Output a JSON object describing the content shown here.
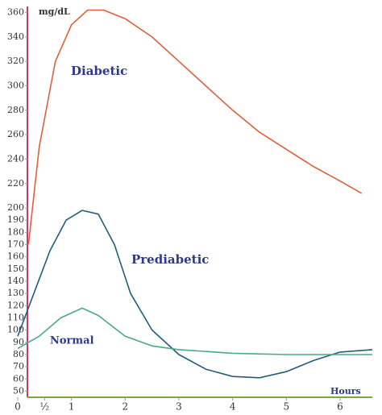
{
  "chart_data": {
    "type": "line",
    "y_unit": "mg/dL",
    "x_label": "Hours",
    "annotations": [
      "Diabetic",
      "Prediabetic",
      "Normal"
    ],
    "xlim": [
      -0.15,
      6.6
    ],
    "ylim": [
      45,
      365
    ],
    "xticks": [
      0,
      {
        "value": 0.5,
        "label": "½"
      },
      1,
      2,
      3,
      4,
      5,
      6
    ],
    "yticks": [
      50,
      60,
      70,
      80,
      90,
      100,
      110,
      120,
      130,
      140,
      150,
      160,
      170,
      180,
      190,
      200,
      220,
      240,
      260,
      280,
      300,
      320,
      340,
      360
    ],
    "series": [
      {
        "name": "Diabetic",
        "color": "#e0603a",
        "x": [
          0.2,
          0.4,
          0.7,
          1.0,
          1.3,
          1.6,
          2,
          2.5,
          3,
          3.5,
          4,
          4.5,
          5,
          5.5,
          6,
          6.4
        ],
        "values": [
          170,
          250,
          320,
          350,
          362,
          362,
          355,
          340,
          320,
          300,
          280,
          262,
          248,
          234,
          222,
          212
        ]
      },
      {
        "name": "Prediabetic",
        "color": "#1f5f7a",
        "x": [
          0,
          0.3,
          0.6,
          0.9,
          1.2,
          1.5,
          1.8,
          2.1,
          2.5,
          3,
          3.5,
          4,
          4.5,
          5,
          5.5,
          6,
          6.6
        ],
        "values": [
          95,
          130,
          165,
          190,
          198,
          195,
          170,
          130,
          100,
          80,
          68,
          62,
          61,
          66,
          75,
          82,
          84
        ]
      },
      {
        "name": "Normal",
        "color": "#4aa88a",
        "x": [
          0,
          0.4,
          0.8,
          1.2,
          1.5,
          2,
          2.5,
          3,
          4,
          5,
          6,
          6.6
        ],
        "values": [
          85,
          95,
          110,
          118,
          112,
          95,
          87,
          84,
          81,
          80,
          80,
          80
        ]
      }
    ]
  }
}
